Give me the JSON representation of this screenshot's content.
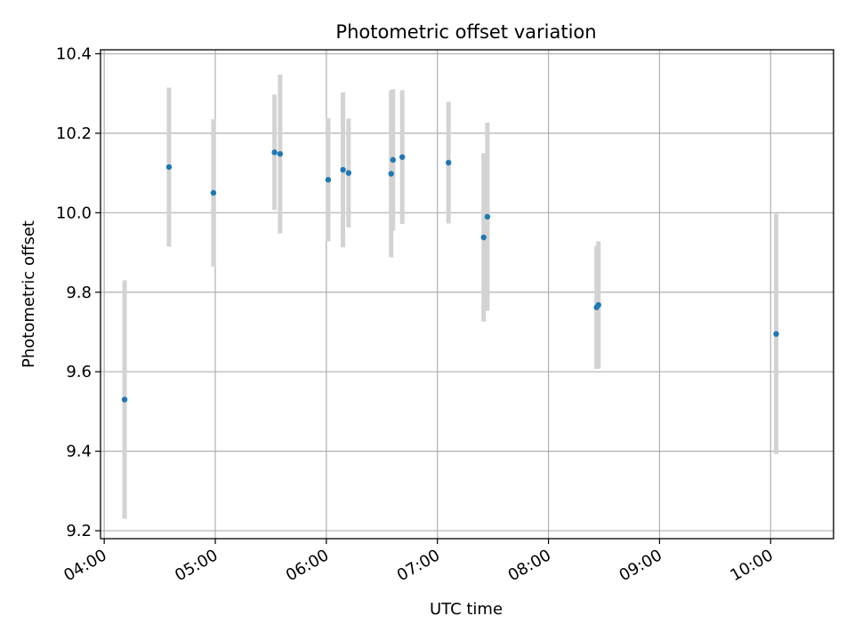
{
  "chart_data": {
    "type": "scatter",
    "title": "Photometric offset variation",
    "xlabel": "UTC time",
    "ylabel": "Photometric offset",
    "x_ticks": [
      "04:00",
      "05:00",
      "06:00",
      "07:00",
      "08:00",
      "09:00",
      "10:00"
    ],
    "y_ticks": [
      "9.2",
      "9.4",
      "9.6",
      "9.8",
      "10.0",
      "10.2",
      "10.4"
    ],
    "xlim": [
      "03:58",
      "10:34"
    ],
    "ylim": [
      9.18,
      10.41
    ],
    "grid": true,
    "marker_color": "#1f77b4",
    "errorbar_color": "#d3d3d3",
    "points": [
      {
        "t": "04:11",
        "y": 9.53,
        "err": 0.3
      },
      {
        "t": "04:35",
        "y": 10.115,
        "err": 0.2
      },
      {
        "t": "04:59",
        "y": 10.05,
        "err": 0.185
      },
      {
        "t": "05:32",
        "y": 10.152,
        "err": 0.145
      },
      {
        "t": "05:35",
        "y": 10.148,
        "err": 0.2
      },
      {
        "t": "06:01",
        "y": 10.083,
        "err": 0.155
      },
      {
        "t": "06:09",
        "y": 10.108,
        "err": 0.195
      },
      {
        "t": "06:12",
        "y": 10.1,
        "err": 0.137
      },
      {
        "t": "06:35",
        "y": 10.098,
        "err": 0.21
      },
      {
        "t": "06:36",
        "y": 10.133,
        "err": 0.178
      },
      {
        "t": "06:41",
        "y": 10.14,
        "err": 0.168
      },
      {
        "t": "07:06",
        "y": 10.126,
        "err": 0.153
      },
      {
        "t": "07:25",
        "y": 9.938,
        "err": 0.212
      },
      {
        "t": "07:27",
        "y": 9.99,
        "err": 0.237
      },
      {
        "t": "08:26",
        "y": 9.762,
        "err": 0.155
      },
      {
        "t": "08:27",
        "y": 9.768,
        "err": 0.16
      },
      {
        "t": "10:03",
        "y": 9.695,
        "err": 0.302
      }
    ]
  }
}
